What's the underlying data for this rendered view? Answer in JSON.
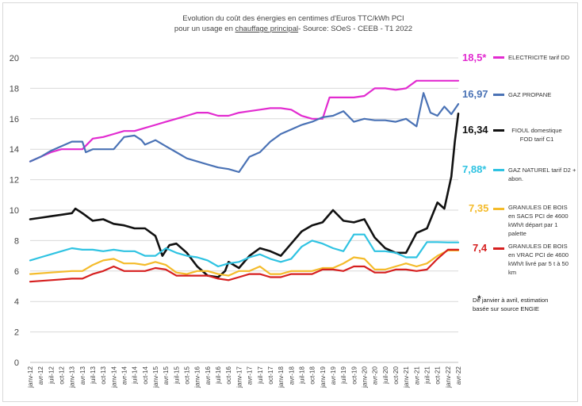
{
  "chart_data": {
    "type": "line",
    "title_line1": "Evolution du coût des énergies en centimes d'Euros TTC/kWh PCI",
    "title_line2_pre": "pour un usage en ",
    "title_line2_u": "chauffage principal",
    "title_line2_post": "- Source: SOeS - CEEB - T1 2022",
    "ylim": [
      0,
      20
    ],
    "yticks": [
      "0",
      "2",
      "4",
      "6",
      "8",
      "10",
      "12",
      "14",
      "16",
      "18",
      "20"
    ],
    "grid": true,
    "x_ticks": [
      "janv-12",
      "avr-12",
      "juil-12",
      "oct-12",
      "janv-13",
      "avr-13",
      "juil-13",
      "oct-13",
      "janv-14",
      "avr-14",
      "juil-14",
      "oct-14",
      "janv-15",
      "avr-15",
      "juil-15",
      "oct-15",
      "janv-16",
      "avr-16",
      "juil-16",
      "oct-16",
      "janv-17",
      "avr-17",
      "juil-17",
      "oct-17",
      "janv-18",
      "avr-18",
      "juil-18",
      "oct-18",
      "janv-19",
      "avr-19",
      "juil-19",
      "oct-19",
      "janv-20",
      "avr-20",
      "juil-20",
      "oct-20",
      "janv-21",
      "avr-21",
      "juil-21",
      "oct-21",
      "janv-22",
      "avr-22"
    ],
    "series": [
      {
        "name": "ELECTRICITE tarif DD",
        "value_label": "18,5*",
        "color": "#e22bd0",
        "points": [
          [
            0,
            13.2
          ],
          [
            3,
            13.5
          ],
          [
            6,
            13.8
          ],
          [
            9,
            14.0
          ],
          [
            12,
            14.0
          ],
          [
            15,
            14.0
          ],
          [
            18,
            14.7
          ],
          [
            21,
            14.8
          ],
          [
            24,
            15.0
          ],
          [
            27,
            15.2
          ],
          [
            30,
            15.2
          ],
          [
            33,
            15.4
          ],
          [
            36,
            15.6
          ],
          [
            39,
            15.8
          ],
          [
            42,
            16.0
          ],
          [
            45,
            16.2
          ],
          [
            48,
            16.4
          ],
          [
            51,
            16.4
          ],
          [
            54,
            16.2
          ],
          [
            57,
            16.2
          ],
          [
            60,
            16.4
          ],
          [
            63,
            16.5
          ],
          [
            66,
            16.6
          ],
          [
            69,
            16.7
          ],
          [
            72,
            16.7
          ],
          [
            75,
            16.6
          ],
          [
            78,
            16.2
          ],
          [
            81,
            16.0
          ],
          [
            84,
            16.0
          ],
          [
            86,
            17.4
          ],
          [
            90,
            17.4
          ],
          [
            93,
            17.4
          ],
          [
            96,
            17.5
          ],
          [
            99,
            18.0
          ],
          [
            102,
            18.0
          ],
          [
            105,
            17.9
          ],
          [
            108,
            18.0
          ],
          [
            111,
            18.5
          ],
          [
            114,
            18.5
          ],
          [
            117,
            18.5
          ],
          [
            123,
            18.5
          ]
        ]
      },
      {
        "name": "GAZ PROPANE",
        "value_label": "16,97",
        "color": "#4a72b5",
        "points": [
          [
            0,
            13.2
          ],
          [
            3,
            13.5
          ],
          [
            6,
            13.9
          ],
          [
            9,
            14.2
          ],
          [
            12,
            14.5
          ],
          [
            15,
            14.5
          ],
          [
            16,
            13.8
          ],
          [
            18,
            14.0
          ],
          [
            21,
            14.0
          ],
          [
            24,
            14.0
          ],
          [
            27,
            14.8
          ],
          [
            30,
            14.9
          ],
          [
            32,
            14.6
          ],
          [
            33,
            14.3
          ],
          [
            36,
            14.6
          ],
          [
            39,
            14.2
          ],
          [
            42,
            13.8
          ],
          [
            45,
            13.4
          ],
          [
            48,
            13.2
          ],
          [
            51,
            13.0
          ],
          [
            54,
            12.8
          ],
          [
            57,
            12.7
          ],
          [
            60,
            12.5
          ],
          [
            63,
            13.5
          ],
          [
            66,
            13.8
          ],
          [
            69,
            14.5
          ],
          [
            72,
            15.0
          ],
          [
            75,
            15.3
          ],
          [
            78,
            15.6
          ],
          [
            81,
            15.8
          ],
          [
            84,
            16.1
          ],
          [
            87,
            16.2
          ],
          [
            90,
            16.5
          ],
          [
            93,
            15.8
          ],
          [
            96,
            16.0
          ],
          [
            99,
            15.9
          ],
          [
            102,
            15.9
          ],
          [
            105,
            15.8
          ],
          [
            108,
            16.0
          ],
          [
            111,
            15.5
          ],
          [
            113,
            17.7
          ],
          [
            115,
            16.4
          ],
          [
            117,
            16.2
          ],
          [
            119,
            16.8
          ],
          [
            121,
            16.3
          ],
          [
            123,
            16.97
          ]
        ]
      },
      {
        "name": "FIOUL domestique FOD tarif C1",
        "value_label": "16,34",
        "color": "#111111",
        "points": [
          [
            0,
            9.4
          ],
          [
            3,
            9.5
          ],
          [
            6,
            9.6
          ],
          [
            9,
            9.7
          ],
          [
            12,
            9.8
          ],
          [
            13,
            10.1
          ],
          [
            15,
            9.8
          ],
          [
            18,
            9.3
          ],
          [
            21,
            9.4
          ],
          [
            24,
            9.1
          ],
          [
            27,
            9.0
          ],
          [
            30,
            8.8
          ],
          [
            33,
            8.8
          ],
          [
            36,
            8.3
          ],
          [
            38,
            7.0
          ],
          [
            40,
            7.7
          ],
          [
            42,
            7.8
          ],
          [
            45,
            7.2
          ],
          [
            48,
            6.3
          ],
          [
            51,
            5.7
          ],
          [
            54,
            5.6
          ],
          [
            56,
            6.0
          ],
          [
            57,
            6.6
          ],
          [
            60,
            6.2
          ],
          [
            63,
            7.0
          ],
          [
            66,
            7.5
          ],
          [
            69,
            7.3
          ],
          [
            72,
            7.0
          ],
          [
            75,
            7.8
          ],
          [
            78,
            8.6
          ],
          [
            81,
            9.0
          ],
          [
            84,
            9.2
          ],
          [
            87,
            10.0
          ],
          [
            90,
            9.3
          ],
          [
            93,
            9.2
          ],
          [
            96,
            9.4
          ],
          [
            99,
            8.2
          ],
          [
            102,
            7.5
          ],
          [
            105,
            7.2
          ],
          [
            108,
            7.2
          ],
          [
            111,
            8.5
          ],
          [
            114,
            8.8
          ],
          [
            117,
            10.5
          ],
          [
            119,
            10.1
          ],
          [
            121,
            12.2
          ],
          [
            122,
            14.5
          ],
          [
            123,
            16.34
          ]
        ]
      },
      {
        "name": "GAZ NATUREL tarif D2 + abon.",
        "value_label": "7,88*",
        "color": "#2fc3e2",
        "points": [
          [
            0,
            6.7
          ],
          [
            3,
            6.9
          ],
          [
            6,
            7.1
          ],
          [
            9,
            7.3
          ],
          [
            12,
            7.5
          ],
          [
            15,
            7.4
          ],
          [
            18,
            7.4
          ],
          [
            21,
            7.3
          ],
          [
            24,
            7.4
          ],
          [
            27,
            7.3
          ],
          [
            30,
            7.3
          ],
          [
            33,
            7.0
          ],
          [
            36,
            7.0
          ],
          [
            39,
            7.5
          ],
          [
            42,
            7.2
          ],
          [
            45,
            7.0
          ],
          [
            48,
            6.9
          ],
          [
            51,
            6.7
          ],
          [
            54,
            6.3
          ],
          [
            57,
            6.5
          ],
          [
            60,
            6.6
          ],
          [
            63,
            6.9
          ],
          [
            66,
            7.1
          ],
          [
            69,
            6.8
          ],
          [
            72,
            6.6
          ],
          [
            75,
            6.8
          ],
          [
            78,
            7.6
          ],
          [
            81,
            8.0
          ],
          [
            84,
            7.8
          ],
          [
            87,
            7.5
          ],
          [
            90,
            7.3
          ],
          [
            93,
            8.4
          ],
          [
            96,
            8.4
          ],
          [
            99,
            7.3
          ],
          [
            102,
            7.3
          ],
          [
            105,
            7.2
          ],
          [
            108,
            6.9
          ],
          [
            111,
            6.9
          ],
          [
            114,
            7.9
          ],
          [
            117,
            7.9
          ],
          [
            120,
            7.88
          ],
          [
            123,
            7.88
          ]
        ]
      },
      {
        "name": "GRANULES DE BOIS en SACS PCI de 4600 kWh/t départ par 1 palette",
        "value_label": "7,35",
        "color": "#f4bb2a",
        "points": [
          [
            0,
            5.8
          ],
          [
            6,
            5.9
          ],
          [
            12,
            6.0
          ],
          [
            15,
            6.0
          ],
          [
            18,
            6.4
          ],
          [
            21,
            6.7
          ],
          [
            24,
            6.8
          ],
          [
            27,
            6.5
          ],
          [
            30,
            6.5
          ],
          [
            33,
            6.4
          ],
          [
            36,
            6.6
          ],
          [
            39,
            6.4
          ],
          [
            42,
            5.9
          ],
          [
            45,
            5.8
          ],
          [
            48,
            6.0
          ],
          [
            51,
            6.0
          ],
          [
            54,
            5.8
          ],
          [
            57,
            5.7
          ],
          [
            60,
            6.0
          ],
          [
            63,
            6.0
          ],
          [
            66,
            6.3
          ],
          [
            69,
            5.8
          ],
          [
            72,
            5.8
          ],
          [
            75,
            6.0
          ],
          [
            78,
            6.0
          ],
          [
            81,
            6.0
          ],
          [
            84,
            6.2
          ],
          [
            87,
            6.2
          ],
          [
            90,
            6.5
          ],
          [
            93,
            6.9
          ],
          [
            96,
            6.8
          ],
          [
            99,
            6.1
          ],
          [
            102,
            6.1
          ],
          [
            105,
            6.3
          ],
          [
            108,
            6.5
          ],
          [
            111,
            6.3
          ],
          [
            114,
            6.5
          ],
          [
            117,
            7.0
          ],
          [
            120,
            7.35
          ],
          [
            123,
            7.35
          ]
        ]
      },
      {
        "name": "GRANULES DE BOIS en VRAC PCI de 4600 kWh/t livré par 5 t à 50 km",
        "value_label": "7,4",
        "color": "#d61f1f",
        "points": [
          [
            0,
            5.3
          ],
          [
            6,
            5.4
          ],
          [
            12,
            5.5
          ],
          [
            15,
            5.5
          ],
          [
            18,
            5.8
          ],
          [
            21,
            6.0
          ],
          [
            24,
            6.3
          ],
          [
            27,
            6.0
          ],
          [
            30,
            6.0
          ],
          [
            33,
            6.0
          ],
          [
            36,
            6.2
          ],
          [
            39,
            6.1
          ],
          [
            42,
            5.7
          ],
          [
            45,
            5.7
          ],
          [
            48,
            5.7
          ],
          [
            51,
            5.7
          ],
          [
            54,
            5.5
          ],
          [
            57,
            5.4
          ],
          [
            60,
            5.6
          ],
          [
            63,
            5.8
          ],
          [
            66,
            5.8
          ],
          [
            69,
            5.6
          ],
          [
            72,
            5.6
          ],
          [
            75,
            5.8
          ],
          [
            78,
            5.8
          ],
          [
            81,
            5.8
          ],
          [
            84,
            6.1
          ],
          [
            87,
            6.1
          ],
          [
            90,
            6.0
          ],
          [
            93,
            6.3
          ],
          [
            96,
            6.3
          ],
          [
            99,
            5.9
          ],
          [
            102,
            5.9
          ],
          [
            105,
            6.1
          ],
          [
            108,
            6.1
          ],
          [
            111,
            6.0
          ],
          [
            114,
            6.1
          ],
          [
            117,
            6.8
          ],
          [
            120,
            7.4
          ],
          [
            123,
            7.4
          ]
        ]
      }
    ],
    "note_star": "*",
    "note": "De janvier à avril, estimation basée sur source ENGIE"
  }
}
